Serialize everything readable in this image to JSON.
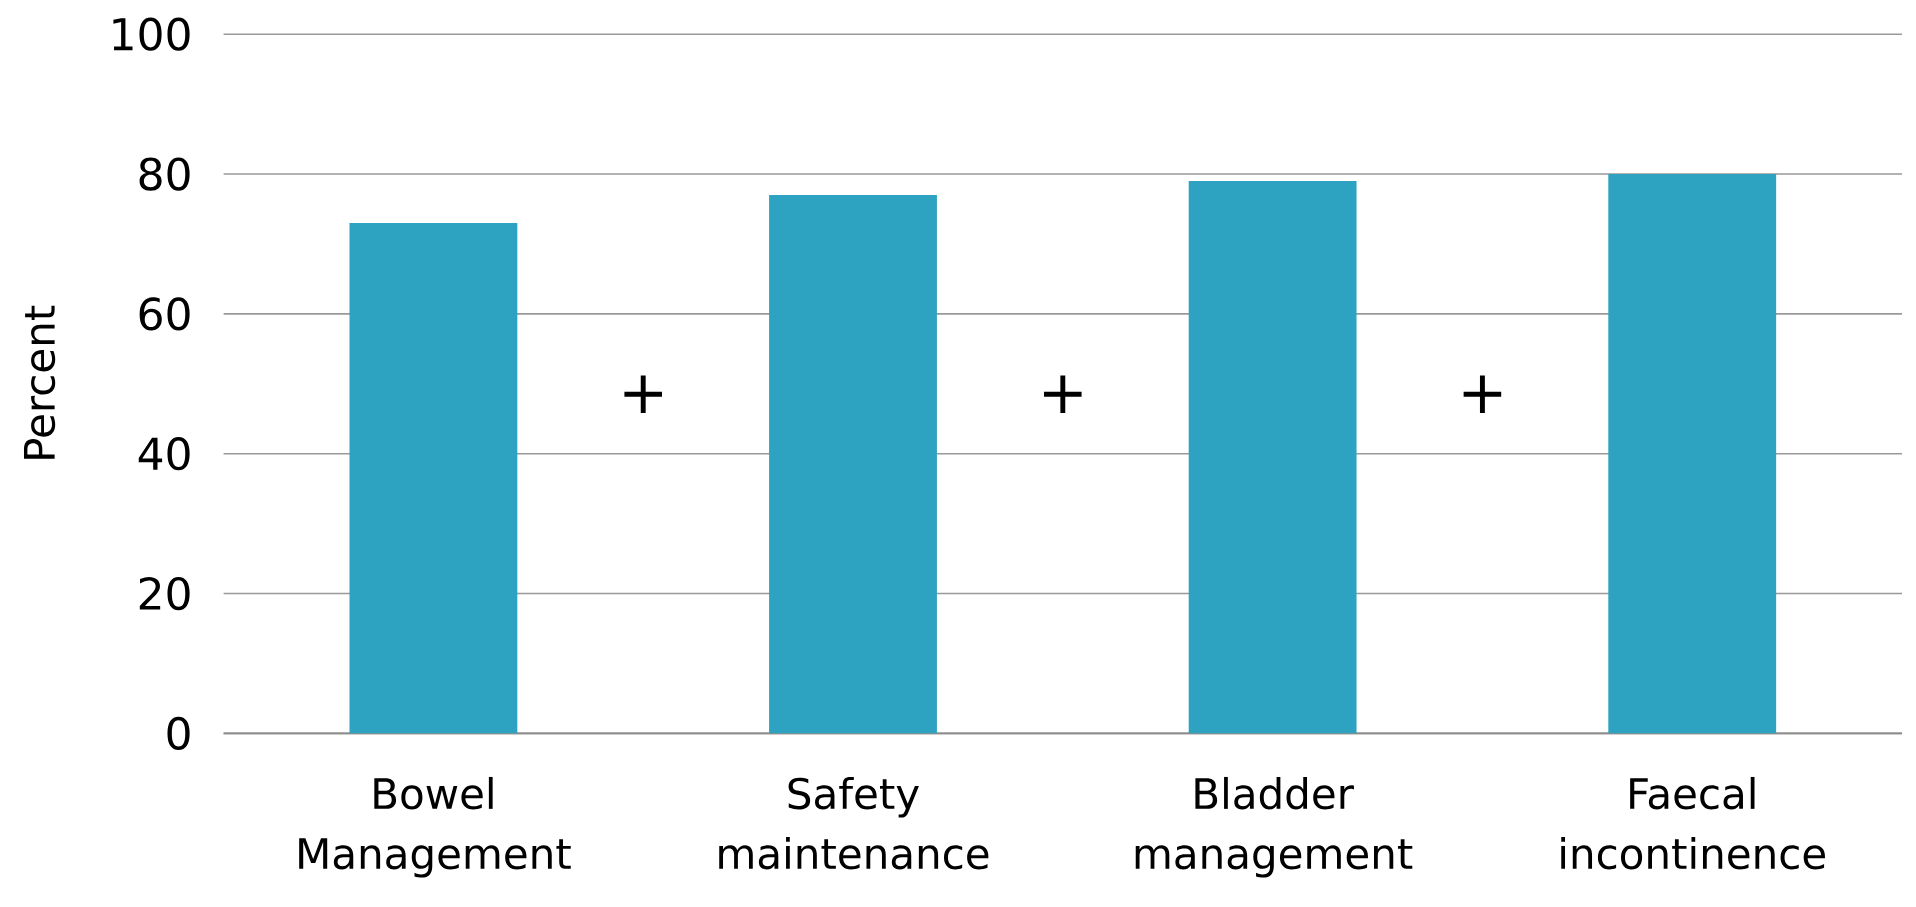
{
  "chart_data": {
    "type": "bar",
    "ylabel": "Percent",
    "categories": [
      "Bowel Management",
      "Safety maintenance",
      "Bladder management",
      "Faecal incontinence"
    ],
    "values": [
      73,
      77,
      79,
      80
    ],
    "color": "#2ea3c1",
    "ylim": [
      0,
      100
    ],
    "yticks": [
      0,
      20,
      40,
      60,
      80,
      100
    ],
    "grid": "y",
    "annotations": [
      "+",
      "+",
      "+"
    ]
  }
}
